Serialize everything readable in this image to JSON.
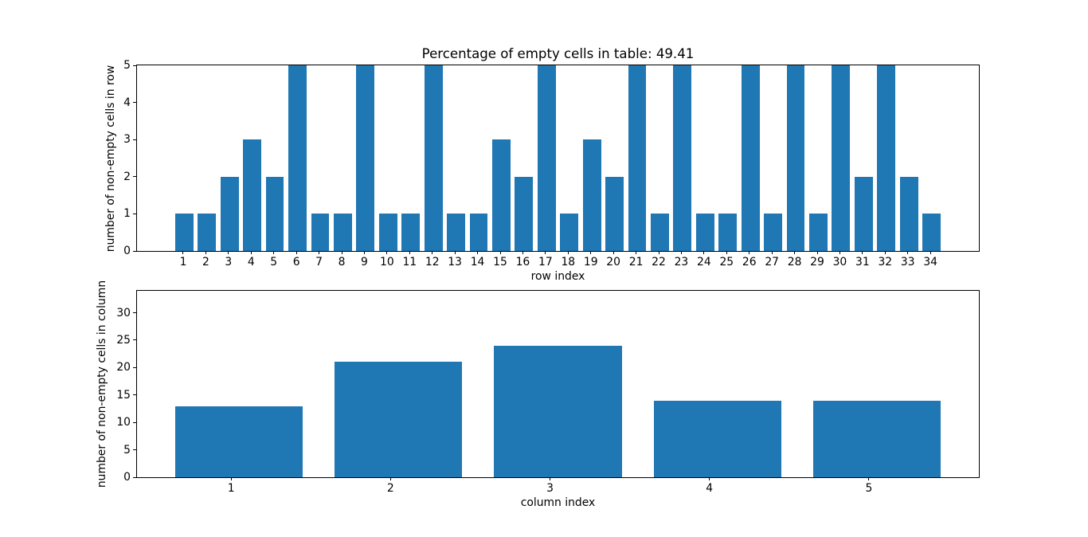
{
  "figure": {
    "background": "#ffffff",
    "bar_color": "#1f77b4",
    "spine_color": "#000000",
    "text_color": "#000000"
  },
  "chart_data": [
    {
      "type": "bar",
      "title": "Percentage of empty cells in table: 49.41",
      "xlabel": "row index",
      "ylabel": "number of non-empty cells in row",
      "categories": [
        1,
        2,
        3,
        4,
        5,
        6,
        7,
        8,
        9,
        10,
        11,
        12,
        13,
        14,
        15,
        16,
        17,
        18,
        19,
        20,
        21,
        22,
        23,
        24,
        25,
        26,
        27,
        28,
        29,
        30,
        31,
        32,
        33,
        34
      ],
      "values": [
        1,
        1,
        2,
        3,
        2,
        5,
        1,
        1,
        5,
        1,
        1,
        5,
        1,
        1,
        3,
        2,
        5,
        1,
        3,
        2,
        5,
        1,
        5,
        1,
        1,
        5,
        1,
        5,
        1,
        5,
        2,
        5,
        2,
        1
      ],
      "xlim": [
        -1.04,
        36.14
      ],
      "ylim": [
        0,
        5
      ],
      "yticks": [
        0,
        1,
        2,
        3,
        4,
        5
      ],
      "bar_width": 0.8,
      "bar_center_offset": 0.05,
      "bar_color": "#1f77b4",
      "grid": false,
      "legend": null
    },
    {
      "type": "bar",
      "title": "",
      "xlabel": "column index",
      "ylabel": "number of non-empty cells in column",
      "categories": [
        1,
        2,
        3,
        4,
        5
      ],
      "values": [
        13,
        21,
        24,
        14,
        14
      ],
      "xlim": [
        0.41,
        5.69
      ],
      "ylim": [
        0,
        34
      ],
      "yticks": [
        0,
        5,
        10,
        15,
        20,
        25,
        30
      ],
      "bar_width": 0.8,
      "bar_center_offset": 0.05,
      "bar_color": "#1f77b4",
      "grid": false,
      "legend": null
    }
  ]
}
